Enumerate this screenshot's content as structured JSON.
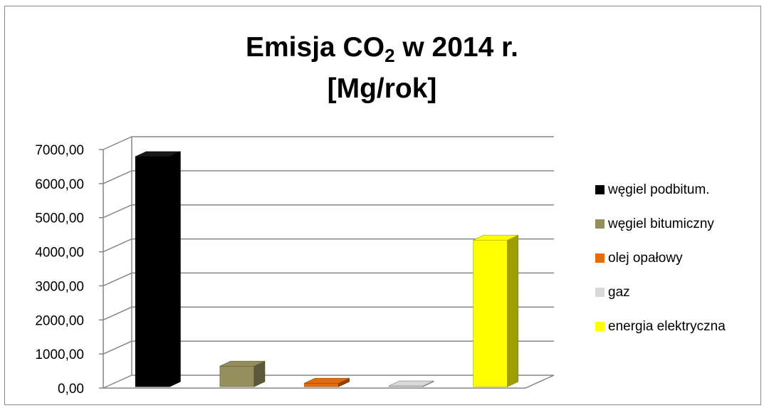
{
  "chart_data": {
    "type": "bar",
    "title": "Emisja CO",
    "title_subscript": "2",
    "title_suffix": " w 2014 r.",
    "title_line2": "[Mg/rok]",
    "ylim": [
      0,
      7000
    ],
    "yticks": [
      "0,00",
      "1000,00",
      "2000,00",
      "3000,00",
      "4000,00",
      "5000,00",
      "6000,00",
      "7000,00"
    ],
    "categories": [
      "węgiel podbitum.",
      "węgiel bitumiczny",
      "olej opałowy",
      "gaz",
      "energia elektryczna"
    ],
    "values": [
      6750,
      600,
      100,
      20,
      4300
    ],
    "colors": [
      "#000000",
      "#958f5d",
      "#e46c0a",
      "#d9d9d9",
      "#ffff00"
    ],
    "grid": true,
    "legend_position": "right"
  }
}
